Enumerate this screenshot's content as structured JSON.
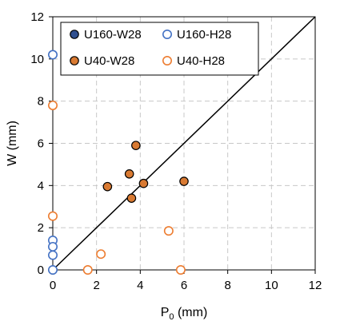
{
  "chart_data": {
    "type": "scatter",
    "title": "",
    "xlabel_main": "P",
    "xlabel_sub": "0",
    "xlabel_unit": " (mm)",
    "ylabel": "W (mm)",
    "xlim": [
      0,
      12
    ],
    "ylim": [
      0,
      12
    ],
    "xticks": [
      "0",
      "2",
      "4",
      "6",
      "8",
      "10",
      "12"
    ],
    "yticks": [
      "0",
      "2",
      "4",
      "6",
      "8",
      "10",
      "12"
    ],
    "grid": true,
    "grid_style": "dashed",
    "reference_line": {
      "from": [
        0,
        0
      ],
      "to": [
        12,
        12
      ],
      "color": "#000000"
    },
    "legend_placement": "top-left",
    "series": [
      {
        "name": "U160-W28",
        "marker": "filled",
        "fill": "#2F4F8F",
        "stroke": "#000000",
        "points": [
          [
            0,
            0
          ]
        ]
      },
      {
        "name": "U160-H28",
        "marker": "open",
        "fill": "none",
        "stroke": "#4472C4",
        "points": [
          [
            0,
            10.2
          ],
          [
            0,
            1.4
          ],
          [
            0,
            1.1
          ],
          [
            0,
            0.7
          ],
          [
            0,
            0
          ]
        ]
      },
      {
        "name": "U40-W28",
        "marker": "filled",
        "fill": "#D97A32",
        "stroke": "#000000",
        "points": [
          [
            3.8,
            5.9
          ],
          [
            6.0,
            4.2
          ],
          [
            3.5,
            4.55
          ],
          [
            4.15,
            4.1
          ],
          [
            2.5,
            3.95
          ],
          [
            3.6,
            3.4
          ]
        ]
      },
      {
        "name": "U40-H28",
        "marker": "open",
        "fill": "none",
        "stroke": "#ED7D31",
        "points": [
          [
            0,
            7.8
          ],
          [
            0,
            2.55
          ],
          [
            5.3,
            1.85
          ],
          [
            2.2,
            0.75
          ],
          [
            1.6,
            0
          ],
          [
            5.85,
            0
          ]
        ]
      }
    ]
  }
}
